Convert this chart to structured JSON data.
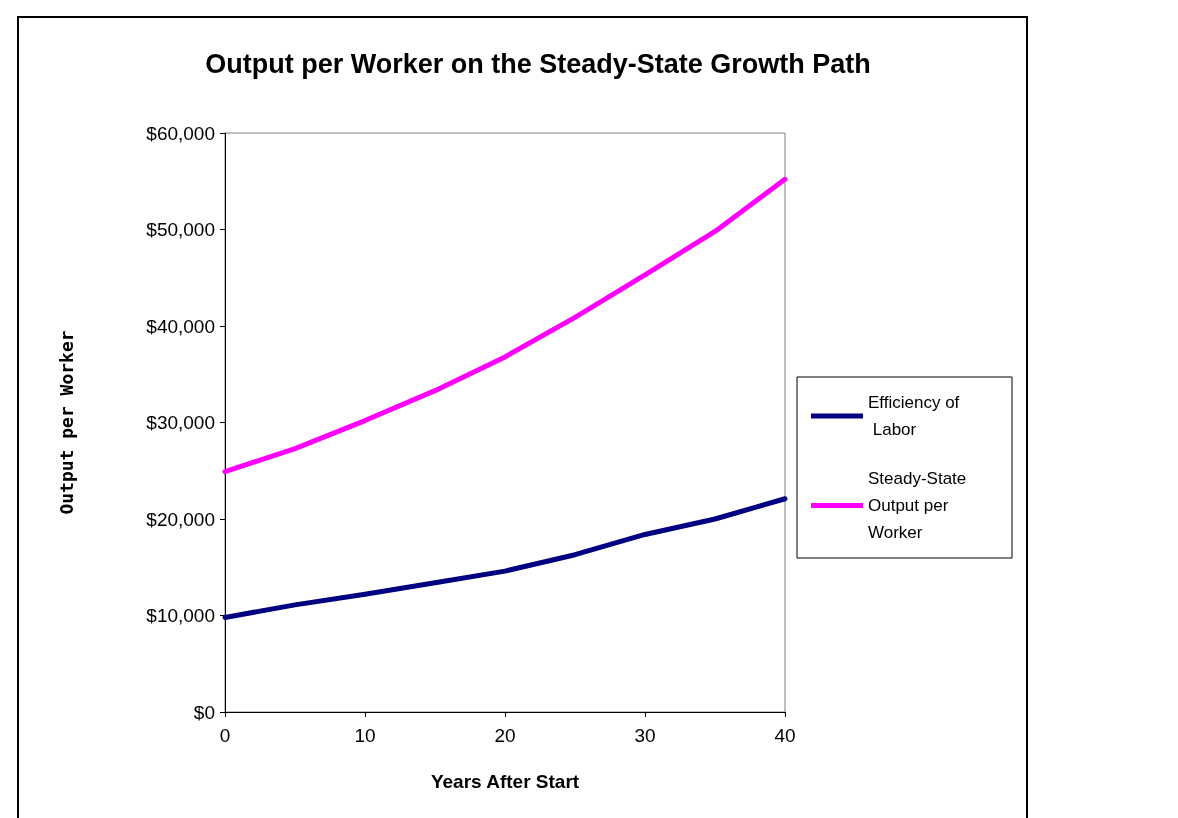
{
  "chart_data": {
    "type": "line",
    "title": "Output per Worker on the Steady-State Growth Path",
    "xlabel": "Years After Start",
    "ylabel": "Output per Worker",
    "x": [
      0,
      5,
      10,
      15,
      20,
      25,
      30,
      35,
      40
    ],
    "series": [
      {
        "name": "Efficiency of Labor",
        "color": "#000080",
        "values": [
          9800,
          11100,
          12200,
          13400,
          14600,
          16300,
          18400,
          20000,
          22100
        ]
      },
      {
        "name": "Steady-State Output per Worker",
        "color": "#ff00ff",
        "values": [
          24900,
          27300,
          30200,
          33300,
          36800,
          40900,
          45300,
          49800,
          55200
        ]
      }
    ],
    "xlim": [
      0,
      40
    ],
    "xticks": [
      0,
      10,
      20,
      30,
      40
    ],
    "ylim": [
      0,
      60000
    ],
    "yticks": [
      {
        "value": 0,
        "label": "$0"
      },
      {
        "value": 10000,
        "label": "$10,000"
      },
      {
        "value": 20000,
        "label": "$20,000"
      },
      {
        "value": 30000,
        "label": "$30,000"
      },
      {
        "value": 40000,
        "label": "$40,000"
      },
      {
        "value": 50000,
        "label": "$50,000"
      },
      {
        "value": 60000,
        "label": "$60,000"
      }
    ],
    "grid": false,
    "legend": "right",
    "marker": "none",
    "line_style": "solid"
  }
}
